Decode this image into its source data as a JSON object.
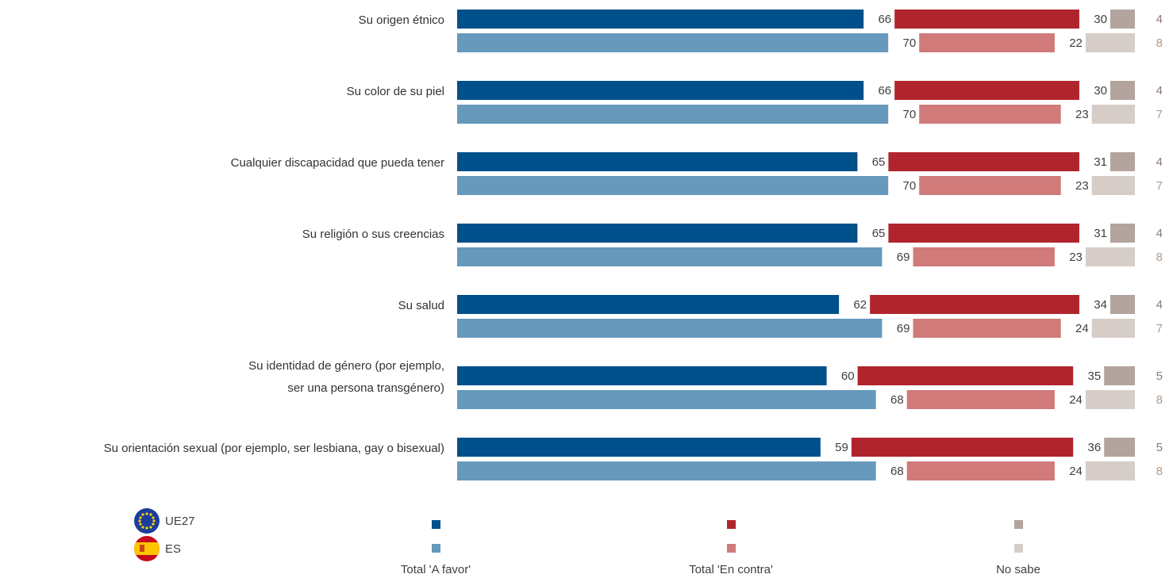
{
  "chart_data": {
    "type": "stacked-bar-horizontal",
    "categories": [
      "Su origen étnico",
      "Su color de su piel",
      "Cualquier discapacidad que pueda tener",
      "Su religión o sus creencias",
      "Su salud",
      "Su identidad de género (por ejemplo,\nser una persona transgénero)",
      "Su orientación sexual (por ejemplo, ser lesbiana, gay o bisexual)"
    ],
    "groups": [
      "UE27",
      "ES"
    ],
    "series": [
      {
        "name": "Total 'A favor'",
        "colors": [
          "#00508c",
          "#6699bb"
        ],
        "values": [
          [
            66,
            66,
            65,
            65,
            62,
            60,
            59
          ],
          [
            70,
            70,
            70,
            69,
            69,
            68,
            68
          ]
        ]
      },
      {
        "name": "Total 'En contra'",
        "colors": [
          "#b0252d",
          "#d07a7a"
        ],
        "values": [
          [
            30,
            30,
            31,
            31,
            34,
            35,
            36
          ],
          [
            22,
            23,
            23,
            23,
            24,
            24,
            24
          ]
        ]
      },
      {
        "name": "No sabe",
        "colors": [
          "#b3a49d",
          "#d6cdc8"
        ],
        "values": [
          [
            4,
            4,
            4,
            4,
            4,
            5,
            5
          ],
          [
            8,
            7,
            7,
            8,
            7,
            8,
            8
          ]
        ]
      }
    ]
  }
}
